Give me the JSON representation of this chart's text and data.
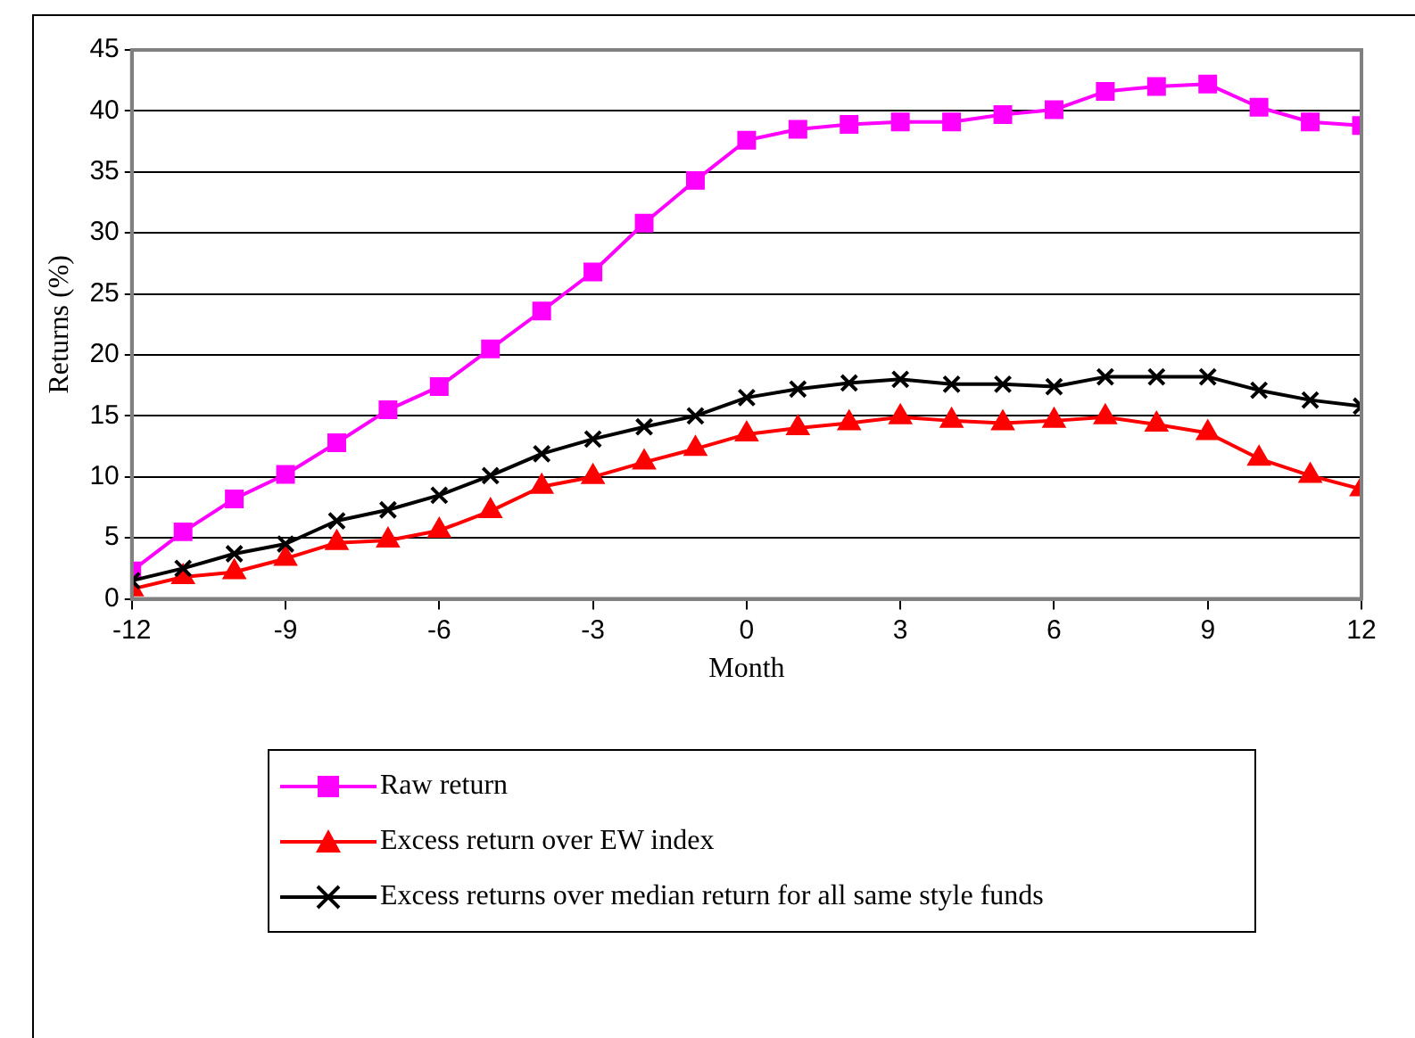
{
  "chart_data": {
    "type": "line",
    "xlabel": "Month",
    "ylabel": "Returns (%)",
    "x": [
      -12,
      -11,
      -10,
      -9,
      -8,
      -7,
      -6,
      -5,
      -4,
      -3,
      -2,
      -1,
      0,
      1,
      2,
      3,
      4,
      5,
      6,
      7,
      8,
      9,
      10,
      11,
      12
    ],
    "xlim": [
      -12,
      12
    ],
    "xticks": [
      -12,
      -9,
      -6,
      -3,
      0,
      3,
      6,
      9,
      12
    ],
    "ylim": [
      0,
      45
    ],
    "yticks": [
      0,
      5,
      10,
      15,
      20,
      25,
      30,
      35,
      40,
      45
    ],
    "grid": "y",
    "legend": "bottom",
    "series": [
      {
        "name": "Raw return",
        "color": "#ff00ff",
        "marker": "square",
        "values": [
          2.3,
          5.5,
          8.2,
          10.2,
          12.8,
          15.5,
          17.4,
          20.5,
          23.6,
          26.8,
          30.8,
          34.3,
          37.6,
          38.5,
          38.9,
          39.1,
          39.1,
          39.7,
          40.1,
          41.6,
          42.0,
          42.2,
          40.3,
          39.1,
          38.8
        ]
      },
      {
        "name": "Excess return over EW index",
        "color": "#ff0000",
        "marker": "triangle",
        "values": [
          0.8,
          1.8,
          2.2,
          3.3,
          4.6,
          4.8,
          5.6,
          7.2,
          9.2,
          10.0,
          11.2,
          12.3,
          13.5,
          14.0,
          14.4,
          14.9,
          14.6,
          14.4,
          14.6,
          14.9,
          14.3,
          13.6,
          11.5,
          10.1,
          9.0
        ]
      },
      {
        "name": "Excess returns over median return for all same style funds",
        "color": "#000000",
        "marker": "cross",
        "values": [
          1.5,
          2.5,
          3.7,
          4.5,
          6.4,
          7.3,
          8.5,
          10.1,
          11.9,
          13.1,
          14.1,
          15.0,
          16.5,
          17.2,
          17.7,
          18.0,
          17.6,
          17.6,
          17.4,
          18.2,
          18.2,
          18.2,
          17.1,
          16.3,
          15.8
        ]
      }
    ]
  }
}
